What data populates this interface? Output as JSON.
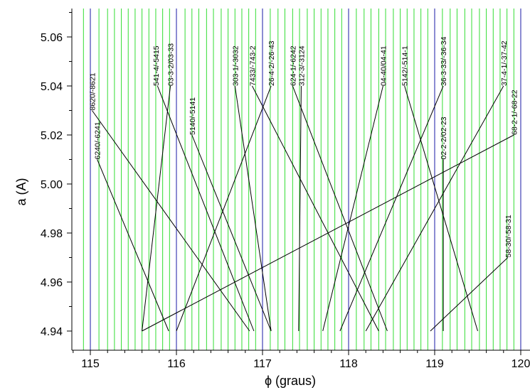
{
  "chart_data": {
    "type": "line",
    "title": "",
    "xlabel": "ϕ (graus)",
    "ylabel": "a (A)",
    "xlim": [
      114.8,
      120.0
    ],
    "ylim": [
      4.93,
      5.07
    ],
    "x_ticks": [
      "115",
      "116",
      "117",
      "118",
      "119",
      "120"
    ],
    "y_ticks": [
      "4.94",
      "4.96",
      "4.98",
      "5.00",
      "5.02",
      "5.04",
      "5.06"
    ],
    "grid": false,
    "blue_reference_lines_x": [
      115,
      116,
      117,
      118,
      119,
      120
    ],
    "green_reference_lines_x": [
      114.92,
      115.1,
      115.2,
      115.28,
      115.36,
      115.44,
      115.52,
      115.6,
      115.68,
      115.76,
      115.84,
      115.92,
      116.1,
      116.18,
      116.26,
      116.35,
      116.43,
      116.52,
      116.6,
      116.68,
      116.76,
      116.84,
      116.92,
      117.09,
      117.18,
      117.26,
      117.35,
      117.43,
      117.52,
      117.6,
      117.68,
      117.76,
      117.84,
      117.92,
      118.09,
      118.18,
      118.26,
      118.35,
      118.43,
      118.52,
      118.6,
      118.68,
      118.76,
      118.84,
      118.92,
      119.09,
      119.18,
      119.26,
      119.35,
      119.43,
      119.52,
      119.6,
      119.68,
      119.76,
      119.84,
      119.92
    ],
    "colors": {
      "blue": "#1a1aa6",
      "green": "#33dd33",
      "line": "#000000"
    },
    "series": [
      {
        "name": "8620/-8621",
        "x": [
          115.02,
          116.85
        ],
        "y": [
          5.03,
          4.94
        ],
        "label_x": 115.02
      },
      {
        "name": "6240/-6241",
        "x": [
          115.08,
          115.91
        ],
        "y": [
          5.01,
          4.94
        ],
        "label_x": 115.08
      },
      {
        "name": "541-4/-5415",
        "x": [
          115.78,
          116.9
        ],
        "y": [
          5.04,
          4.94
        ],
        "label_x": 115.76
      },
      {
        "name": "03-3-2/03-33",
        "x": [
          115.93,
          115.6
        ],
        "y": [
          5.04,
          4.94
        ],
        "label_x": 115.93
      },
      {
        "name": "5140/-5141",
        "x": [
          116.18,
          117.1
        ],
        "y": [
          5.02,
          4.94
        ],
        "label_x": 116.18
      },
      {
        "name": "303-1/-3032",
        "x": [
          116.68,
          117.1
        ],
        "y": [
          5.04,
          4.94
        ],
        "label_x": 116.68
      },
      {
        "name": "7433/-743-2",
        "x": [
          116.88,
          118.35
        ],
        "y": [
          5.04,
          4.94
        ],
        "label_x": 116.88
      },
      {
        "name": "26-4-2/-26-43",
        "x": [
          117.1,
          116.0
        ],
        "y": [
          5.04,
          4.94
        ],
        "label_x": 117.1
      },
      {
        "name": "624-1/-6242",
        "x": [
          117.35,
          118.45
        ],
        "y": [
          5.04,
          4.94
        ],
        "label_x": 117.35
      },
      {
        "name": "312-3/-3124",
        "x": [
          117.45,
          117.42
        ],
        "y": [
          5.04,
          4.94
        ],
        "label_x": 117.45
      },
      {
        "name": "04-40/04-41",
        "x": [
          118.4,
          117.7
        ],
        "y": [
          5.04,
          4.94
        ],
        "label_x": 118.4
      },
      {
        "name": "5142/-514-1",
        "x": [
          118.65,
          119.5
        ],
        "y": [
          5.04,
          4.94
        ],
        "label_x": 118.65
      },
      {
        "name": "36-3-33/-36-34",
        "x": [
          119.1,
          117.9
        ],
        "y": [
          5.04,
          4.94
        ],
        "label_x": 119.1
      },
      {
        "name": "02-2-2/02-23",
        "x": [
          119.1,
          119.1
        ],
        "y": [
          5.01,
          4.94
        ],
        "label_x": 119.1
      },
      {
        "name": "37-4-1/-37-42",
        "x": [
          119.8,
          118.2
        ],
        "y": [
          5.04,
          4.94
        ],
        "label_x": 119.8
      },
      {
        "name": "68-2-1/-68-22",
        "x": [
          119.92,
          115.6
        ],
        "y": [
          5.02,
          4.94
        ],
        "label_x": 119.92
      },
      {
        "name": "58-30/-58-31",
        "x": [
          119.85,
          118.95
        ],
        "y": [
          4.97,
          4.94
        ],
        "label_x": 119.85
      }
    ]
  }
}
